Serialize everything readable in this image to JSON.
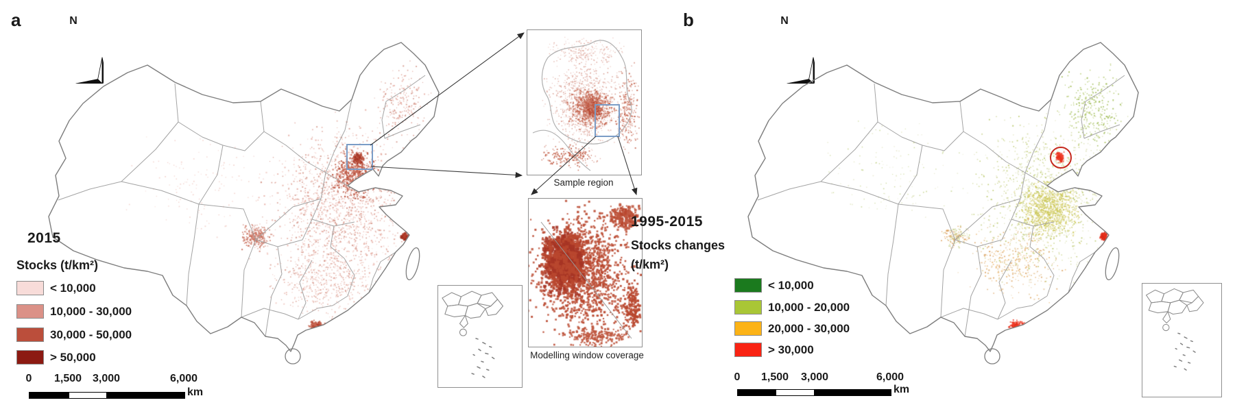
{
  "figure": {
    "panel_a": {
      "label": "a",
      "compass_label": "N",
      "legend": {
        "year": "2015",
        "title": "Stocks (t/km²)",
        "items": [
          {
            "label": "< 10,000",
            "color": "#f8dcd9"
          },
          {
            "label": "10,000 - 30,000",
            "color": "#db9187"
          },
          {
            "label": "30,000 - 50,000",
            "color": "#bb4e3b"
          },
          {
            "label": "> 50,000",
            "color": "#8c1a12"
          }
        ]
      },
      "scalebar": {
        "ticks": [
          "0",
          "1,500",
          "3,000",
          "6,000"
        ],
        "unit": "km"
      },
      "sample_region_label": "Sample region",
      "modelling_window_label": "Modelling window coverage",
      "sample_box_color": "#7a9cc6"
    },
    "panel_b": {
      "label": "b",
      "compass_label": "N",
      "legend": {
        "year": "1995-2015",
        "title_line1": "Stocks changes",
        "title_line2": "(t/km²)",
        "items": [
          {
            "label": "< 10,000",
            "color": "#1b7a1e"
          },
          {
            "label": "10,000 - 20,000",
            "color": "#a9c636"
          },
          {
            "label": "20,000 - 30,000",
            "color": "#fcb316"
          },
          {
            "label": "> 30,000",
            "color": "#f92313"
          }
        ]
      },
      "scalebar": {
        "ticks": [
          "0",
          "1,500",
          "3,000",
          "6,000"
        ],
        "unit": "km"
      },
      "capital_marker_color": "#c5281c"
    }
  }
}
